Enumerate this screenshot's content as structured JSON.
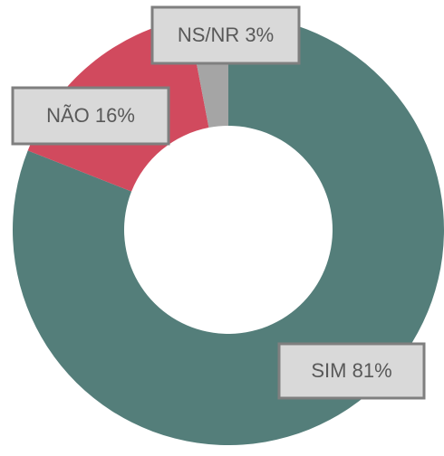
{
  "chart_data": {
    "type": "donut",
    "categories": [
      "SIM",
      "NÃO",
      "NS/NR"
    ],
    "values": [
      81,
      16,
      3
    ],
    "value_labels": [
      "81%",
      "16%",
      "3%"
    ],
    "colors": [
      "#547e7a",
      "#d14a5e",
      "#a5a5a5"
    ]
  }
}
